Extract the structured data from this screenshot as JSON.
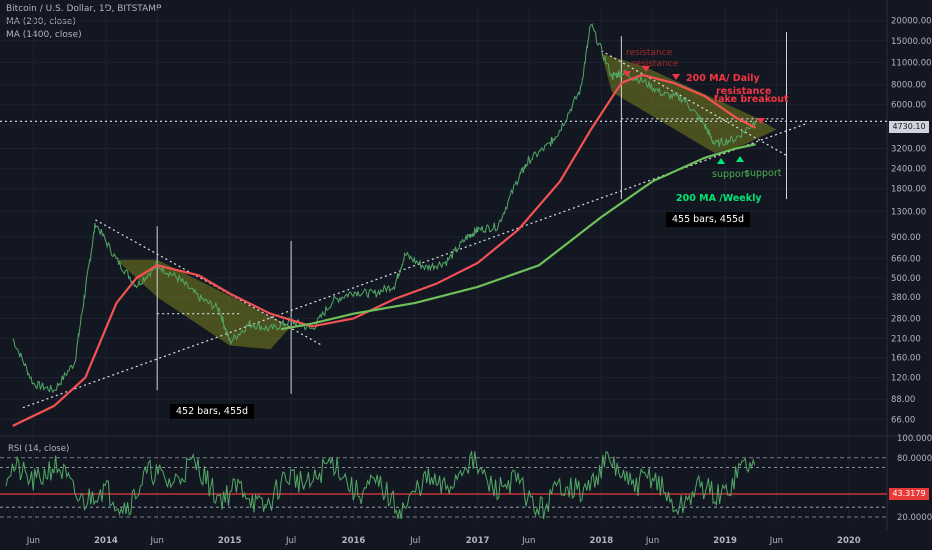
{
  "header": {
    "title": "Bitcoin / U.S. Dollar, 1D, BITSTAMP",
    "ma200": "MA (200, close)",
    "ma1400": "MA (1400, close)"
  },
  "rsi": {
    "label": "RSI (14, close)",
    "value": "43.3179"
  },
  "price_tag": "4730.10",
  "annotations": {
    "resistance_top": "resistance",
    "resistance_top2": "resistance",
    "ma200_daily": "200 MA/ Daily",
    "resistance": "resistance",
    "fake_breakout": "fake breakout",
    "support1": "support",
    "support2": "support",
    "ma200_weekly": "200 MA /Weekly",
    "bars1": "452 bars, 455d",
    "bars2": "455 bars, 455d"
  },
  "colors": {
    "background": "#131722",
    "price": "#52a866",
    "ma200": "#f25252",
    "ma1400": "#6ec15a",
    "rsi_line": "#52a866",
    "channel_fill": "#7a7f1e"
  },
  "chart_data": {
    "type": "line",
    "y_scale": "log",
    "ylim": [
      55,
      24000
    ],
    "x_ticks": [
      "Jun",
      "2014",
      "Jun",
      "2015",
      "Jul",
      "2016",
      "Jul",
      "2017",
      "Jun",
      "2018",
      "Jun",
      "2019",
      "Jun",
      "2020"
    ],
    "y_ticks": [
      "20000.00",
      "15000.00",
      "11000.00",
      "8000.00",
      "6000.00",
      "4500.00",
      "3200.00",
      "2400.00",
      "1800.00",
      "1300.00",
      "900.00",
      "660.00",
      "500.00",
      "380.00",
      "280.00",
      "210.00",
      "160.00",
      "120.00",
      "88.00",
      "66.00"
    ],
    "series": [
      {
        "name": "Bitcoin / U.S. Dollar",
        "x": [
          "2013-04",
          "2013-06",
          "2013-08",
          "2013-10",
          "2013-11",
          "2013-12",
          "2014-02",
          "2014-04",
          "2014-06",
          "2014-08",
          "2014-10",
          "2014-12",
          "2015-01",
          "2015-03",
          "2015-05",
          "2015-07",
          "2015-09",
          "2015-11",
          "2016-01",
          "2016-03",
          "2016-05",
          "2016-06",
          "2016-08",
          "2016-10",
          "2016-12",
          "2017-01",
          "2017-03",
          "2017-05",
          "2017-06",
          "2017-08",
          "2017-09",
          "2017-11",
          "2017-12",
          "2018-02",
          "2018-03",
          "2018-05",
          "2018-07",
          "2018-09",
          "2018-11",
          "2018-12",
          "2019-02",
          "2019-04"
        ],
        "values": [
          210,
          110,
          100,
          150,
          420,
          1100,
          650,
          450,
          600,
          500,
          380,
          320,
          200,
          260,
          240,
          270,
          240,
          360,
          410,
          400,
          450,
          700,
          580,
          630,
          900,
          1000,
          1050,
          2100,
          2700,
          3400,
          4200,
          7500,
          19000,
          9000,
          9500,
          8500,
          7000,
          6500,
          4500,
          3400,
          3700,
          4730
        ]
      },
      {
        "name": "MA (200, close)",
        "x": [
          "2013-04",
          "2013-08",
          "2013-11",
          "2014-02",
          "2014-04",
          "2014-06",
          "2014-10",
          "2015-01",
          "2015-05",
          "2015-09",
          "2016-01",
          "2016-05",
          "2016-09",
          "2017-01",
          "2017-05",
          "2017-09",
          "2017-12",
          "2018-03",
          "2018-05",
          "2018-08",
          "2018-11",
          "2019-02",
          "2019-04"
        ],
        "values": [
          60,
          80,
          120,
          350,
          500,
          600,
          520,
          400,
          300,
          250,
          280,
          370,
          460,
          620,
          1000,
          2000,
          4200,
          8200,
          9200,
          8200,
          6800,
          5000,
          4300
        ]
      },
      {
        "name": "MA (1400, close)",
        "x": [
          "2015-06",
          "2015-09",
          "2016-01",
          "2016-07",
          "2017-01",
          "2017-07",
          "2018-01",
          "2018-06",
          "2018-11",
          "2019-02",
          "2019-04"
        ],
        "values": [
          240,
          260,
          300,
          350,
          440,
          600,
          1200,
          2000,
          2800,
          3200,
          3400
        ]
      },
      {
        "name": "RSI (14, close)",
        "ylim": [
          15,
          100
        ],
        "rsi_ticks": [
          "100.0000",
          "80.0000",
          "20.0000"
        ],
        "levels": [
          70,
          30
        ],
        "last": 43.3179
      }
    ]
  }
}
